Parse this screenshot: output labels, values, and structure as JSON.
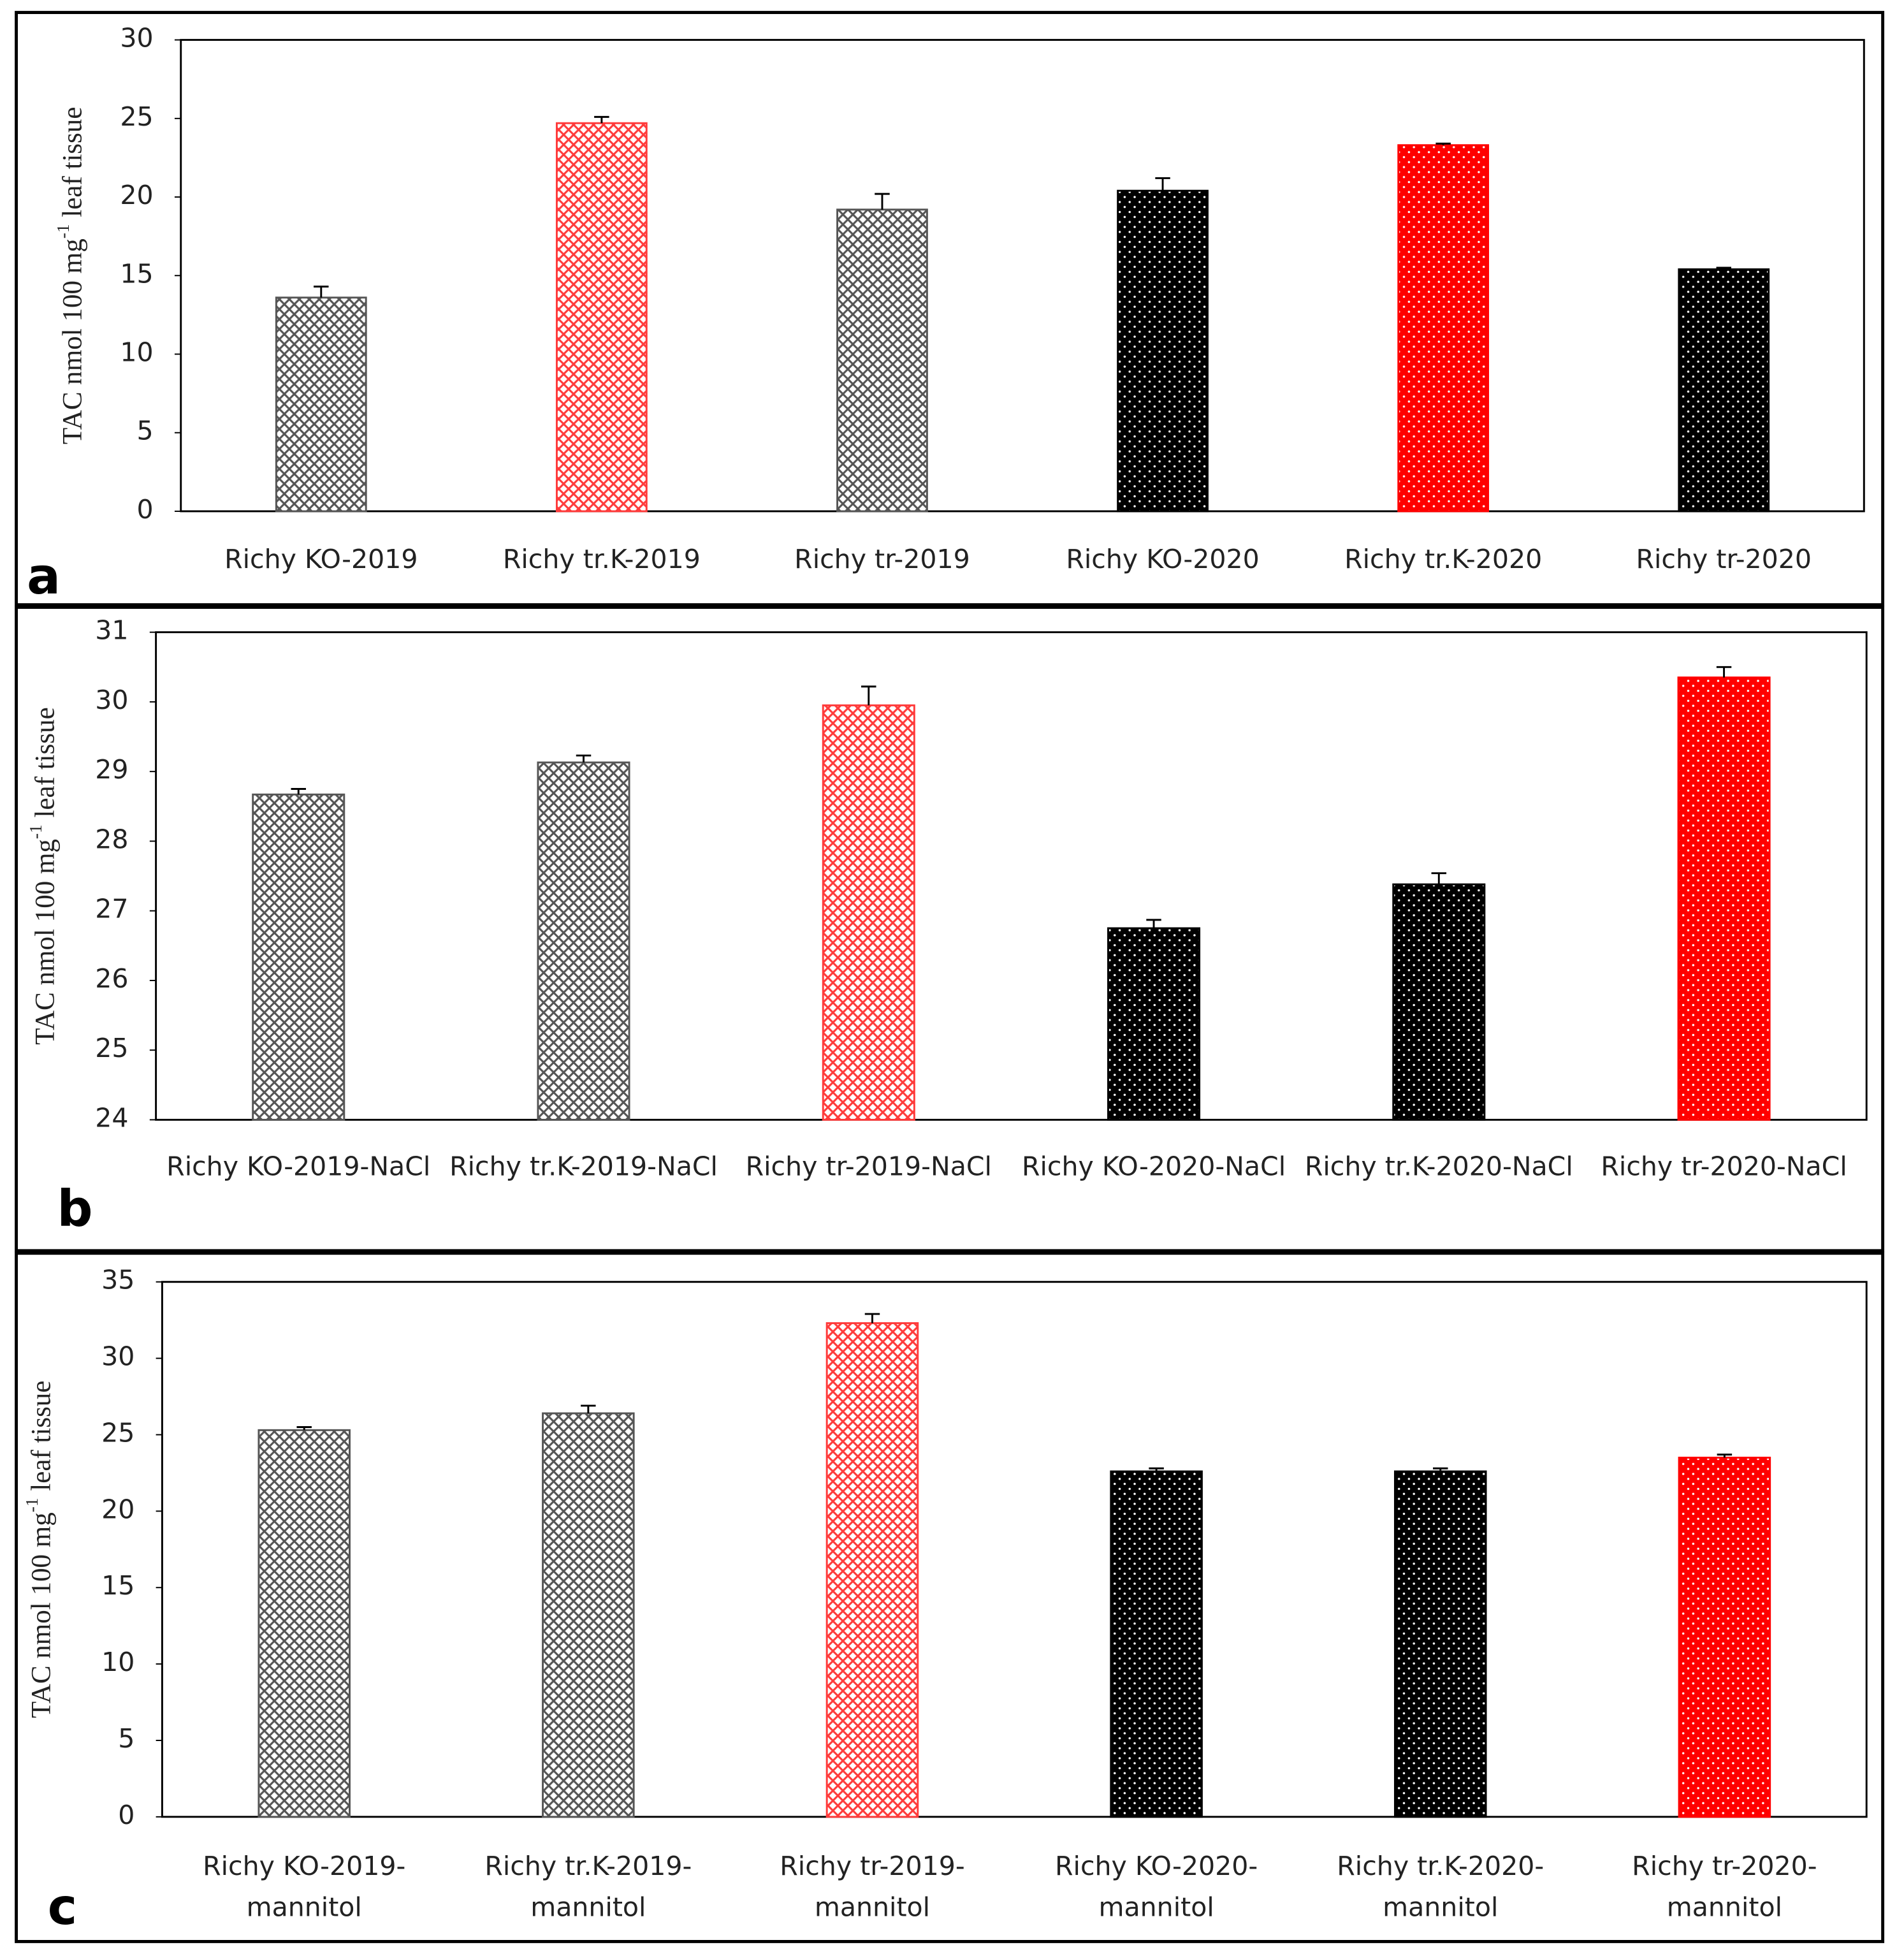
{
  "chart_data": [
    {
      "type": "bar",
      "panel_label": "a",
      "ylabel": [
        "TAC nmol 100 mg",
        "-1",
        " leaf tissue"
      ],
      "categories": [
        "Richy KO-2019",
        "Richy tr.K-2019",
        "Richy tr-2019",
        "Richy KO-2020",
        "Richy tr.K-2020",
        "Richy tr-2020"
      ],
      "values": [
        13.6,
        24.7,
        19.2,
        20.4,
        23.3,
        15.4
      ],
      "errors": [
        0.7,
        0.4,
        1.0,
        0.8,
        0.1,
        0.1
      ],
      "colors": [
        "#555555",
        "#ff3b3b",
        "#555555",
        "#000000",
        "#ff0000",
        "#000000"
      ],
      "patterns": [
        "crosshatch",
        "crosshatch",
        "crosshatch",
        "dots",
        "dots",
        "dots"
      ],
      "ylim": [
        0,
        30
      ],
      "yticks": [
        0,
        5,
        10,
        15,
        20,
        25,
        30
      ]
    },
    {
      "type": "bar",
      "panel_label": "b",
      "ylabel": [
        "TAC nmol 100 mg",
        "-1",
        " leaf tissue"
      ],
      "categories": [
        "Richy KO-2019-NaCl",
        "Richy tr.K-2019-NaCl",
        "Richy tr-2019-NaCl",
        "Richy KO-2020-NaCl",
        "Richy tr.K-2020-NaCl",
        "Richy tr-2020-NaCl"
      ],
      "values": [
        28.67,
        29.13,
        29.95,
        26.75,
        27.38,
        30.35
      ],
      "errors": [
        0.08,
        0.1,
        0.27,
        0.12,
        0.16,
        0.15
      ],
      "colors": [
        "#555555",
        "#555555",
        "#ff3b3b",
        "#000000",
        "#000000",
        "#ff0000"
      ],
      "patterns": [
        "crosshatch",
        "crosshatch",
        "crosshatch",
        "dots",
        "dots",
        "dots"
      ],
      "ylim": [
        24,
        31
      ],
      "yticks": [
        24,
        25,
        26,
        27,
        28,
        29,
        30,
        31
      ]
    },
    {
      "type": "bar",
      "panel_label": "c",
      "ylabel": [
        "TAC nmol 100 mg",
        "-1",
        " leaf tissue"
      ],
      "categories": [
        "Richy KO-2019-mannitol",
        "Richy tr.K-2019-mannitol",
        "Richy tr-2019-mannitol",
        "Richy KO-2020-mannitol",
        "Richy tr.K-2020-mannitol",
        "Richy tr-2020-mannitol"
      ],
      "values": [
        25.3,
        26.4,
        32.3,
        22.6,
        22.6,
        23.5
      ],
      "errors": [
        0.2,
        0.5,
        0.6,
        0.2,
        0.2,
        0.2
      ],
      "colors": [
        "#555555",
        "#555555",
        "#ff3b3b",
        "#000000",
        "#000000",
        "#ff0000"
      ],
      "patterns": [
        "crosshatch",
        "crosshatch",
        "crosshatch",
        "dots",
        "dots",
        "dots"
      ],
      "ylim": [
        0,
        35
      ],
      "yticks": [
        0,
        5,
        10,
        15,
        20,
        25,
        30,
        35
      ]
    }
  ]
}
